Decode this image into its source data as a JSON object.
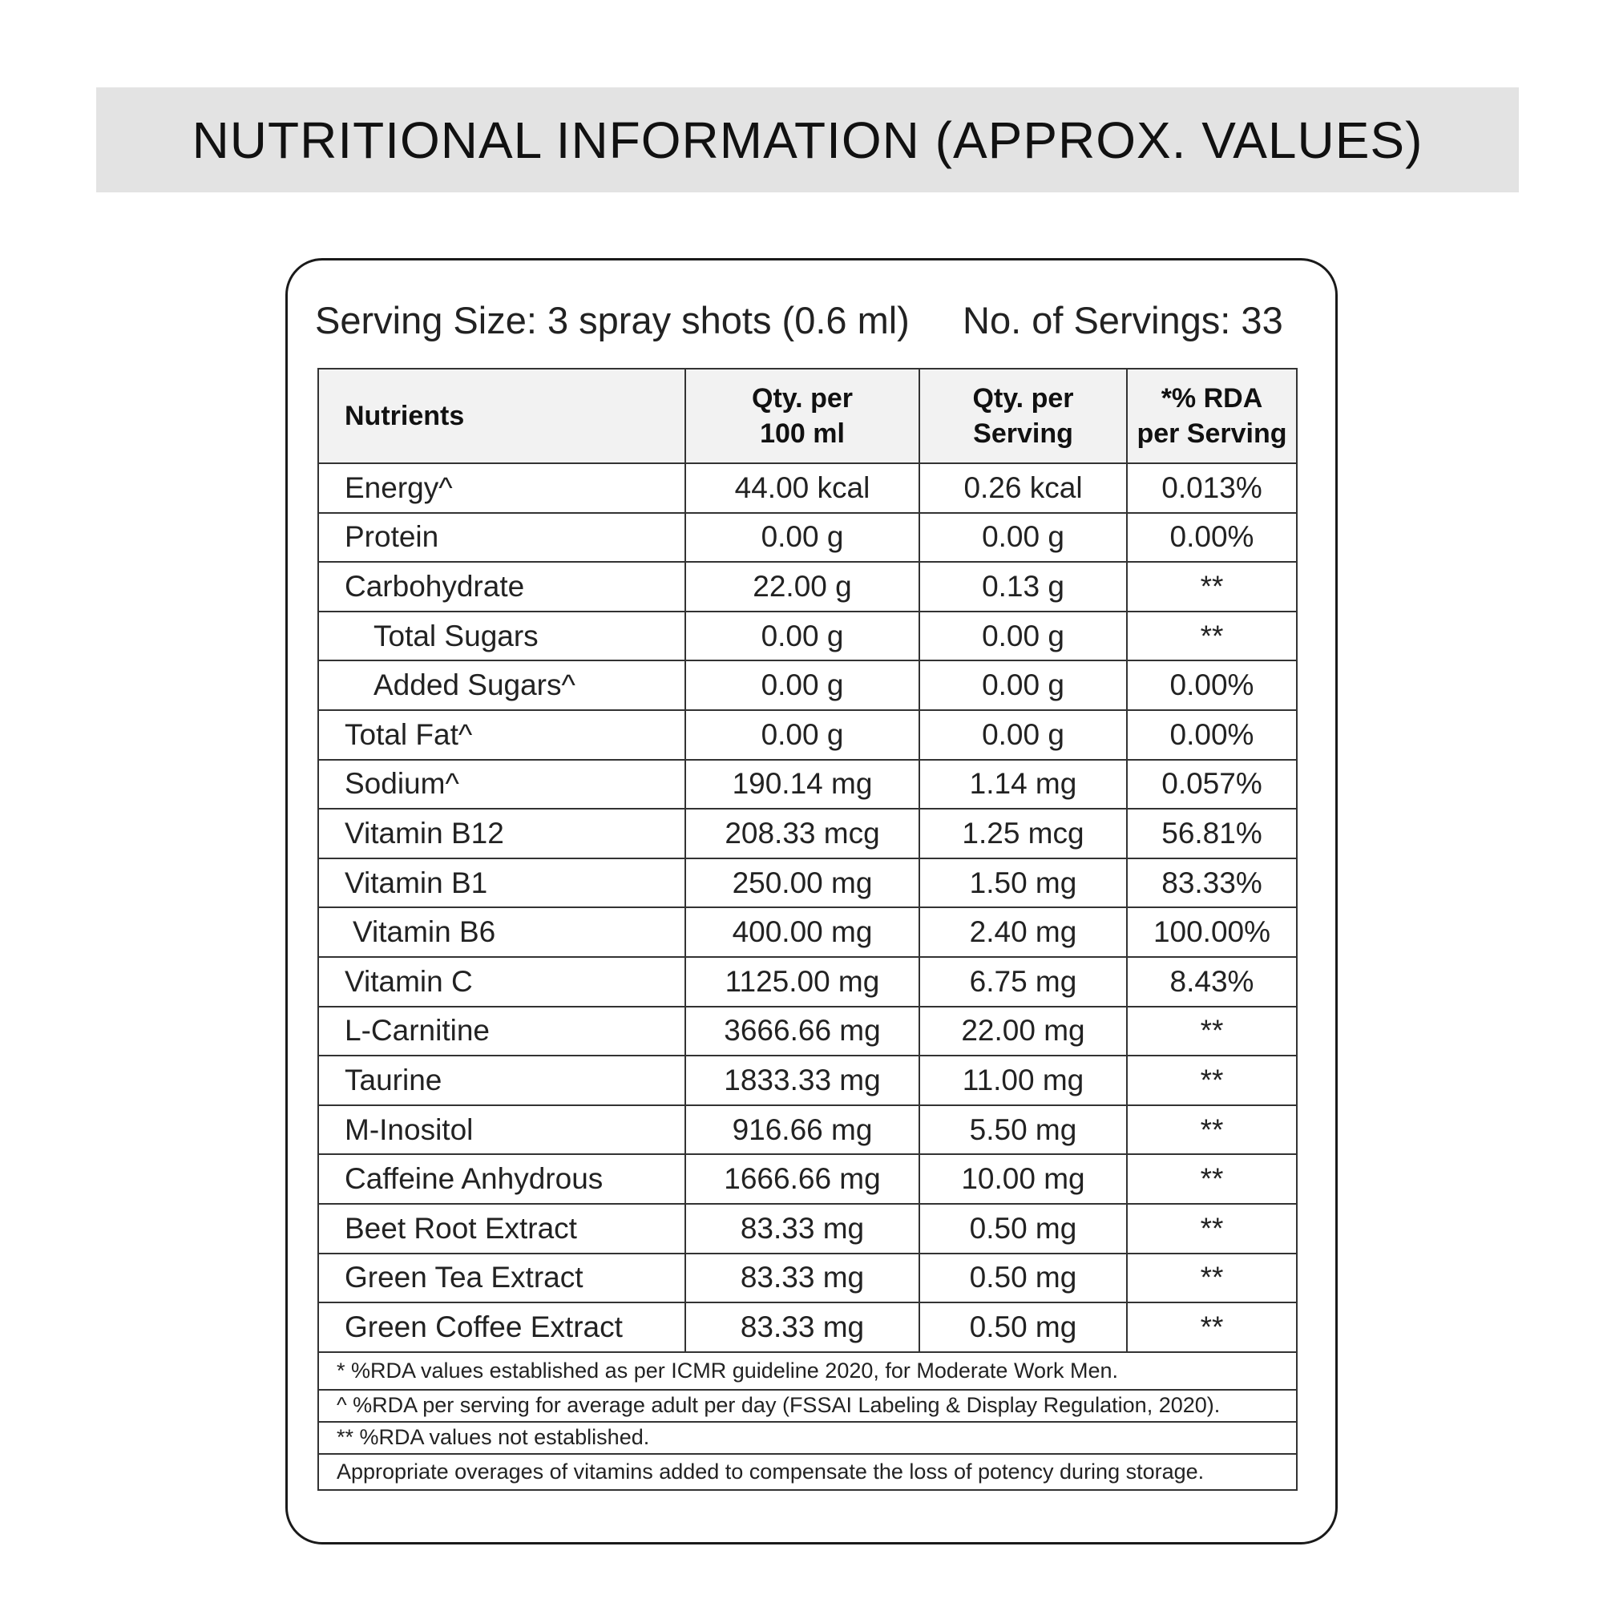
{
  "title": "NUTRITIONAL INFORMATION (APPROX. VALUES)",
  "serving_size": "Serving Size: 3 spray shots (0.6 ml)",
  "servings_count": "No. of Servings: 33",
  "headers": {
    "nutrients": "Nutrients",
    "per100_line1": "Qty. per",
    "per100_line2": "100 ml",
    "perserving_line1": "Qty. per",
    "perserving_line2": "Serving",
    "rda_line1": "*% RDA",
    "rda_line2": "per Serving"
  },
  "rows": [
    {
      "name": "Energy^",
      "per100": "44.00 kcal",
      "perserving": "0.26 kcal",
      "rda": "0.013%"
    },
    {
      "name": "Protein",
      "per100": "0.00 g",
      "perserving": "0.00 g",
      "rda": "0.00%"
    },
    {
      "name": "Carbohydrate",
      "per100": "22.00 g",
      "perserving": "0.13 g",
      "rda": "**"
    },
    {
      "name": "Total Sugars",
      "per100": "0.00 g",
      "perserving": "0.00 g",
      "rda": "**"
    },
    {
      "name": "Added Sugars^",
      "per100": "0.00 g",
      "perserving": "0.00 g",
      "rda": "0.00%"
    },
    {
      "name": "Total Fat^",
      "per100": "0.00 g",
      "perserving": "0.00 g",
      "rda": "0.00%"
    },
    {
      "name": "Sodium^",
      "per100": "190.14 mg",
      "perserving": "1.14 mg",
      "rda": "0.057%"
    },
    {
      "name": "Vitamin B12",
      "per100": "208.33 mcg",
      "perserving": "1.25 mcg",
      "rda": "56.81%"
    },
    {
      "name": "Vitamin B1",
      "per100": "250.00 mg",
      "perserving": "1.50 mg",
      "rda": "83.33%"
    },
    {
      "name": "Vitamin B6",
      "per100": "400.00 mg",
      "perserving": "2.40 mg",
      "rda": "100.00%"
    },
    {
      "name": "Vitamin C",
      "per100": "1125.00 mg",
      "perserving": "6.75 mg",
      "rda": "8.43%"
    },
    {
      "name": "L-Carnitine",
      "per100": "3666.66 mg",
      "perserving": "22.00 mg",
      "rda": "**"
    },
    {
      "name": "Taurine",
      "per100": "1833.33 mg",
      "perserving": "11.00 mg",
      "rda": "**"
    },
    {
      "name": "M-Inositol",
      "per100": "916.66 mg",
      "perserving": "5.50 mg",
      "rda": "**"
    },
    {
      "name": "Caffeine Anhydrous",
      "per100": "1666.66 mg",
      "perserving": "10.00 mg",
      "rda": "**"
    },
    {
      "name": "Beet Root Extract",
      "per100": "83.33 mg",
      "perserving": "0.50 mg",
      "rda": "**"
    },
    {
      "name": "Green Tea Extract",
      "per100": "83.33 mg",
      "perserving": "0.50 mg",
      "rda": "**"
    },
    {
      "name": "Green Coffee Extract",
      "per100": "83.33 mg",
      "perserving": "0.50 mg",
      "rda": "**"
    }
  ],
  "footnotes": [
    "* %RDA values established as per ICMR guideline 2020, for Moderate Work Men.",
    "^ %RDA per serving for average adult per day (FSSAI Labeling & Display Regulation, 2020).",
    "** %RDA values not established.",
    "Appropriate overages of vitamins added to compensate the loss of potency during storage."
  ]
}
